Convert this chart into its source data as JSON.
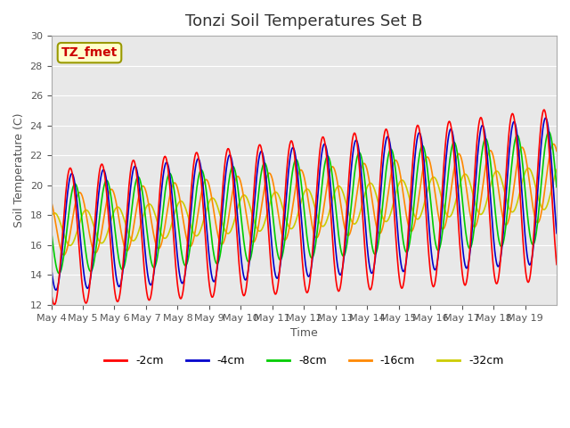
{
  "title": "Tonzi Soil Temperatures Set B",
  "xlabel": "Time",
  "ylabel": "Soil Temperature (C)",
  "annotation": "TZ_fmet",
  "ylim": [
    12,
    30
  ],
  "yticks": [
    12,
    14,
    16,
    18,
    20,
    22,
    24,
    26,
    28,
    30
  ],
  "series_colors": [
    "#ff0000",
    "#0000cc",
    "#00cc00",
    "#ff8800",
    "#cccc00"
  ],
  "series_labels": [
    "-2cm",
    "-4cm",
    "-8cm",
    "-16cm",
    "-32cm"
  ],
  "background_color": "#e8e8e8",
  "n_days": 16,
  "start_day": 4,
  "points_per_day": 48,
  "base_temp": 16.5,
  "warming_rate": 0.18,
  "depth_amp_factors": [
    1.0,
    0.85,
    0.65,
    0.45,
    0.25
  ],
  "depth_phase_shifts": [
    0.0,
    0.05,
    0.15,
    0.3,
    0.5
  ],
  "depth_base_offsets": [
    0.0,
    0.3,
    0.5,
    0.8,
    0.5
  ],
  "xtick_labels": [
    "May 4",
    "May 5",
    "May 6",
    "May 7",
    "May 8",
    "May 9",
    "May 10",
    "May 11",
    "May 12",
    "May 13",
    "May 14",
    "May 15",
    "May 16",
    "May 17",
    "May 18",
    "May 19"
  ]
}
